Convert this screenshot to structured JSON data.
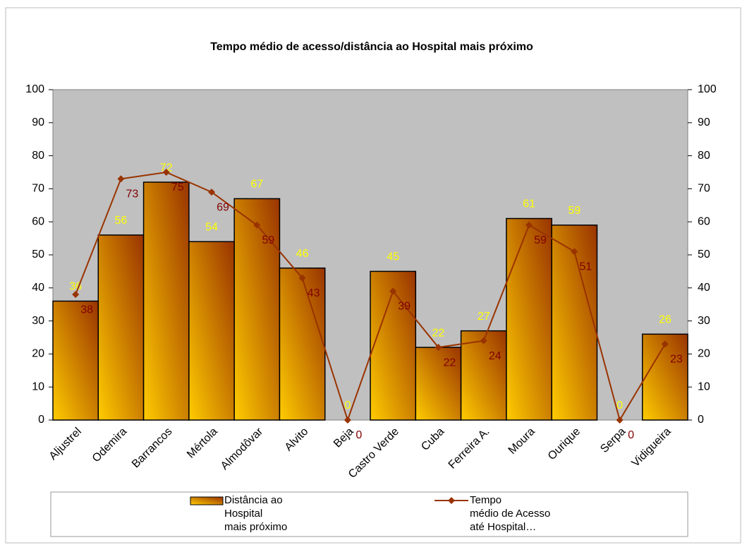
{
  "chart_data": {
    "type": "bar",
    "title": "Tempo médio de acesso/distância ao Hospital mais próximo",
    "categories": [
      "Aljustrel",
      "Odemira",
      "Barrancos",
      "Mértola",
      "Almodôvar",
      "Alvito",
      "Beja",
      "Castro Verde",
      "Cuba",
      "Ferreira A.",
      "Moura",
      "Ourique",
      "Serpa",
      "Vidigueira"
    ],
    "series": [
      {
        "name": "Distância ao\nHospital\nmais próximo",
        "type": "bar",
        "color": "#ffcc00",
        "values": [
          36,
          56,
          72,
          54,
          67,
          46,
          0,
          45,
          22,
          27,
          61,
          59,
          0,
          26
        ]
      },
      {
        "name": "Tempo\nmédio de Acesso\naté Hospital…",
        "type": "line",
        "axis": "y2",
        "color": "#993300",
        "values": [
          38,
          73,
          75,
          69,
          59,
          43,
          0,
          39,
          22,
          24,
          59,
          51,
          0,
          23
        ]
      }
    ],
    "ylim": [
      0,
      100
    ],
    "yticks": [
      0,
      10,
      20,
      30,
      40,
      50,
      60,
      70,
      80,
      90,
      100
    ],
    "y2lim": [
      0,
      100
    ],
    "y2ticks": [
      0,
      10,
      20,
      30,
      40,
      50,
      60,
      70,
      80,
      90,
      100
    ],
    "legend": "bottom"
  }
}
